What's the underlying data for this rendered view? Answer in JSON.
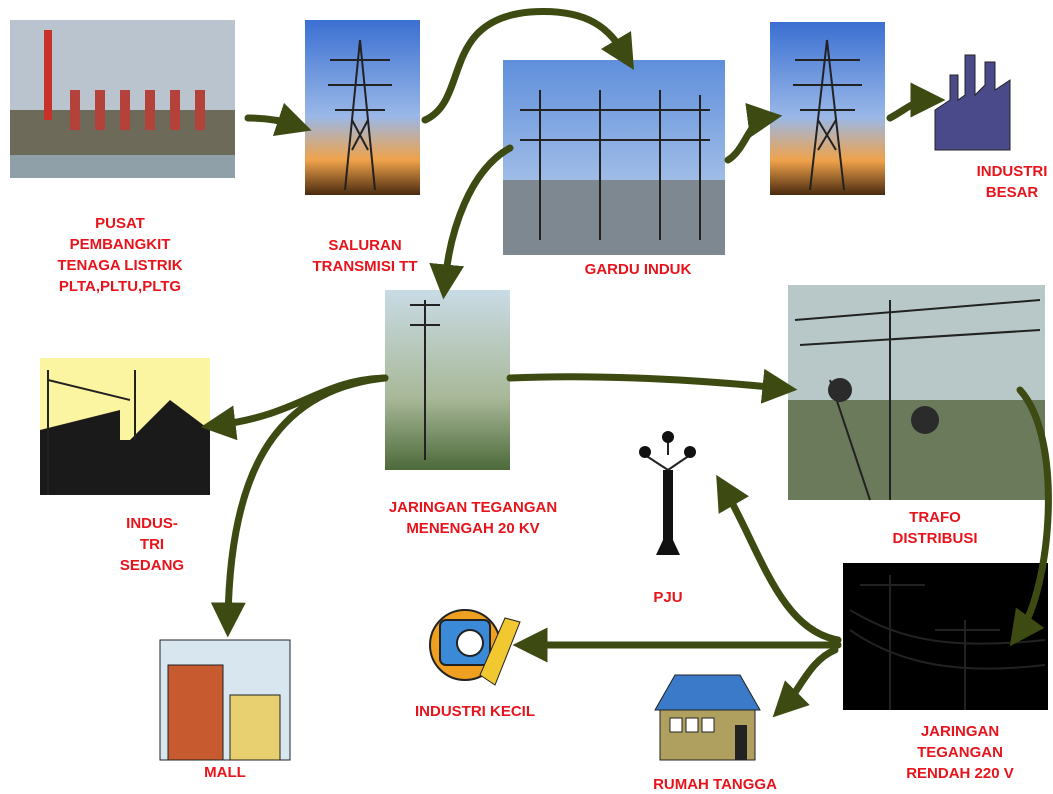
{
  "nodes": [
    {
      "label": [
        "PUSAT",
        "PEMBANGKIT",
        "TENAGA LISTRIK",
        "PLTA,PLTU,PLTG"
      ]
    },
    {
      "label": [
        "SALURAN",
        "TRANSMISI TT"
      ]
    },
    {
      "label": [
        "GARDU INDUK"
      ]
    },
    {
      "label": [
        "INDUSTRI",
        "BESAR"
      ]
    },
    {
      "label": [
        "JARINGAN TEGANGAN",
        "MENENGAH 20 KV"
      ]
    },
    {
      "label": [
        "TRAFO",
        "DISTRIBUSI"
      ]
    },
    {
      "label": [
        "INDUS-",
        "TRI",
        "SEDANG"
      ]
    },
    {
      "label": [
        "PJU"
      ]
    },
    {
      "label": [
        "JARINGAN",
        "TEGANGAN",
        "RENDAH 220 V"
      ]
    },
    {
      "label": [
        "INDUSTRI KECIL"
      ]
    },
    {
      "label": [
        "RUMAH TANGGA"
      ]
    },
    {
      "label": [
        "MALL"
      ]
    }
  ]
}
